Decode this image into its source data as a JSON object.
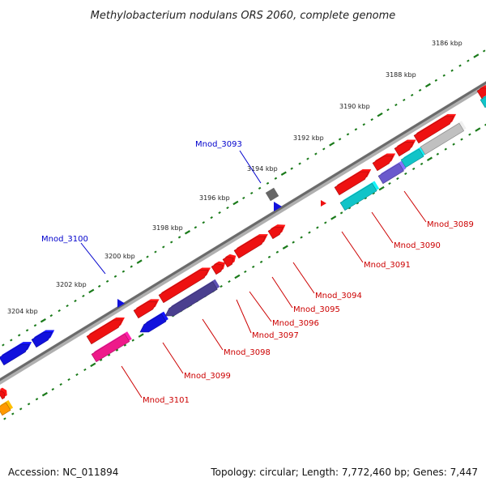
{
  "title": "Methylobacterium nodulans ORS 2060, complete genome",
  "scale_labels": [
    "3186 kbp",
    "3188 kbp",
    "3190 kbp",
    "3192 kbp",
    "3194 kbp",
    "3196 kbp",
    "3198 kbp",
    "3200 kbp",
    "3202 kbp",
    "3204 kbp"
  ],
  "gene_labels": [
    {
      "text": "Mnod_3093",
      "color": "#0000cc"
    },
    {
      "text": "Mnod_3100",
      "color": "#0000cc"
    },
    {
      "text": "Mnod_3089",
      "color": "#cc0000"
    },
    {
      "text": "Mnod_3090",
      "color": "#cc0000"
    },
    {
      "text": "Mnod_3091",
      "color": "#cc0000"
    },
    {
      "text": "Mnod_3094",
      "color": "#cc0000"
    },
    {
      "text": "Mnod_3095",
      "color": "#cc0000"
    },
    {
      "text": "Mnod_3096",
      "color": "#cc0000"
    },
    {
      "text": "Mnod_3097",
      "color": "#cc0000"
    },
    {
      "text": "Mnod_3098",
      "color": "#cc0000"
    },
    {
      "text": "Mnod_3099",
      "color": "#cc0000"
    },
    {
      "text": "Mnod_3101",
      "color": "#cc0000"
    }
  ],
  "colors": {
    "backbone": "#777777",
    "tick": "#1a7a1a",
    "cds_forward": "#ee1111",
    "cds_blue": "#1111dd",
    "cds_navy": "#4a3f8f",
    "cds_magenta": "#ee1a8a",
    "cds_cyan": "#11c4c8",
    "cds_violet": "#6a5acd",
    "cds_grey": "#c0c0c0",
    "cds_darkgrey": "#666666",
    "cds_orange": "#ff9900"
  },
  "footer": {
    "accession": "Accession: NC_011894",
    "summary": "Topology: circular; Length: 7,772,460 bp; Genes: 7,447"
  }
}
